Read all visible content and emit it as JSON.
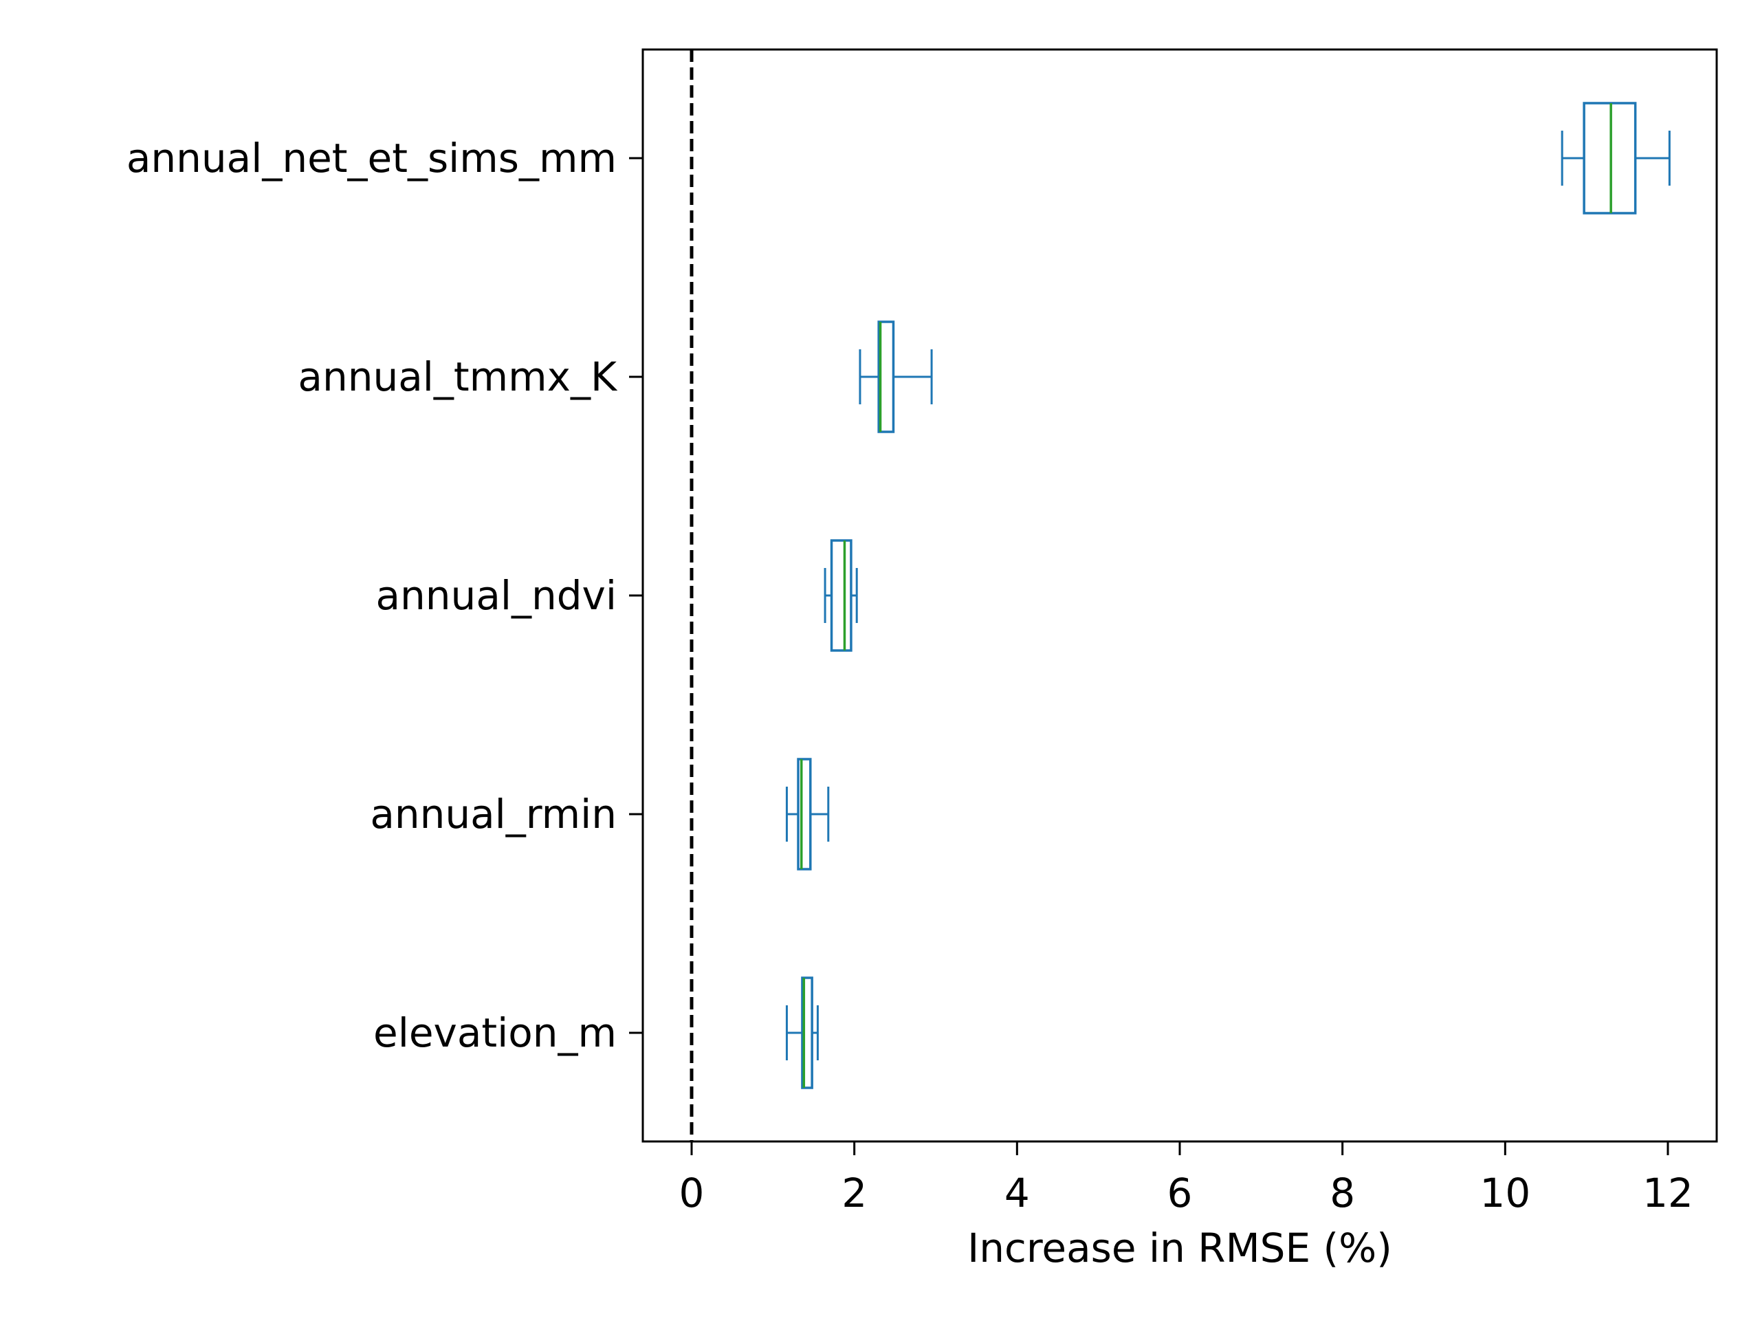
{
  "chart_data": {
    "type": "boxplot",
    "orientation": "horizontal",
    "title": "",
    "xlabel": "Increase in RMSE (%)",
    "ylabel": "",
    "xlim": [
      -0.6,
      12.6
    ],
    "xticks": [
      "0",
      "2",
      "4",
      "6",
      "8",
      "10",
      "12"
    ],
    "reference_line": {
      "x": 0,
      "style": "dashed",
      "color": "#000000"
    },
    "grid": false,
    "legend": "none",
    "colors": {
      "box": "#1f77b4",
      "median": "#2ca02c"
    },
    "categories": [
      "annual_net_et_sims_mm",
      "annual_tmmx_K",
      "annual_ndvi",
      "annual_rmin",
      "elevation_m"
    ],
    "boxes": [
      {
        "label": "annual_net_et_sims_mm",
        "whisker_low": 10.7,
        "q1": 10.97,
        "median": 11.3,
        "q3": 11.6,
        "whisker_high": 12.02
      },
      {
        "label": "annual_tmmx_K",
        "whisker_low": 2.07,
        "q1": 2.3,
        "median": 2.32,
        "q3": 2.48,
        "whisker_high": 2.95
      },
      {
        "label": "annual_ndvi",
        "whisker_low": 1.64,
        "q1": 1.72,
        "median": 1.88,
        "q3": 1.96,
        "whisker_high": 2.03
      },
      {
        "label": "annual_rmin",
        "whisker_low": 1.17,
        "q1": 1.31,
        "median": 1.35,
        "q3": 1.46,
        "whisker_high": 1.68
      },
      {
        "label": "elevation_m",
        "whisker_low": 1.17,
        "q1": 1.36,
        "median": 1.38,
        "q3": 1.48,
        "whisker_high": 1.55
      }
    ]
  }
}
